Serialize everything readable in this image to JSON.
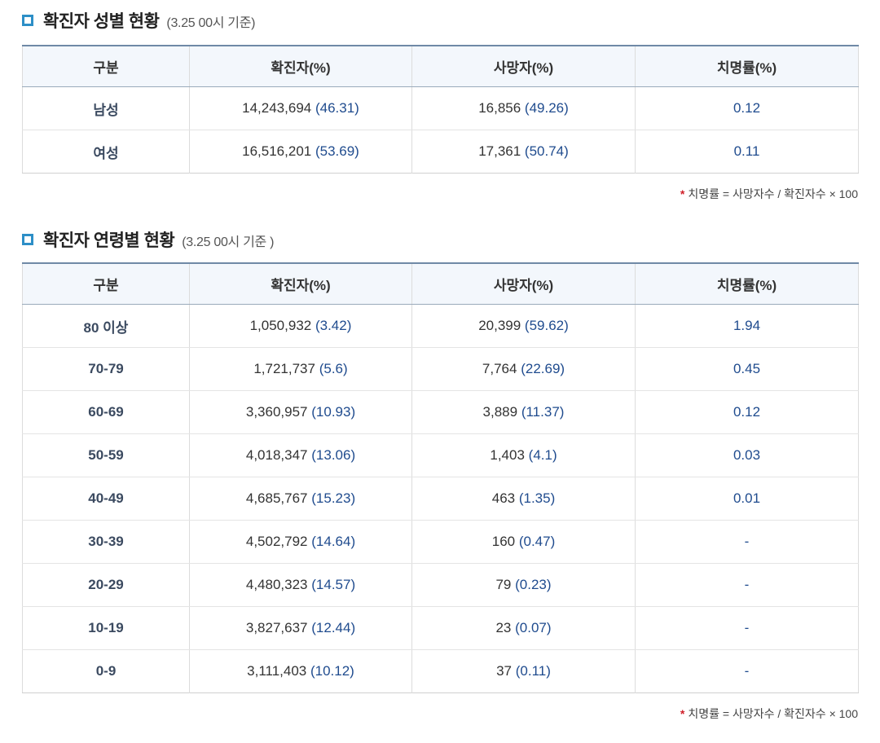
{
  "sections": [
    {
      "title": "확진자 성별 현황",
      "subtitle": "(3.25 00시 기준)",
      "headers": [
        "구분",
        "확진자(%)",
        "사망자(%)",
        "치명률(%)"
      ],
      "rows": [
        {
          "label": "남성",
          "cases": "14,243,694",
          "cases_pct": "(46.31)",
          "deaths": "16,856",
          "deaths_pct": "(49.26)",
          "rate": "0.12"
        },
        {
          "label": "여성",
          "cases": "16,516,201",
          "cases_pct": "(53.69)",
          "deaths": "17,361",
          "deaths_pct": "(50.74)",
          "rate": "0.11"
        }
      ],
      "note": "치명률 = 사망자수 / 확진자수 × 100"
    },
    {
      "title": "확진자 연령별 현황",
      "subtitle": "(3.25 00시 기준 )",
      "headers": [
        "구분",
        "확진자(%)",
        "사망자(%)",
        "치명률(%)"
      ],
      "rows": [
        {
          "label": "80 이상",
          "cases": "1,050,932",
          "cases_pct": "(3.42)",
          "deaths": "20,399",
          "deaths_pct": "(59.62)",
          "rate": "1.94"
        },
        {
          "label": "70-79",
          "cases": "1,721,737",
          "cases_pct": "(5.6)",
          "deaths": "7,764",
          "deaths_pct": "(22.69)",
          "rate": "0.45"
        },
        {
          "label": "60-69",
          "cases": "3,360,957",
          "cases_pct": "(10.93)",
          "deaths": "3,889",
          "deaths_pct": "(11.37)",
          "rate": "0.12"
        },
        {
          "label": "50-59",
          "cases": "4,018,347",
          "cases_pct": "(13.06)",
          "deaths": "1,403",
          "deaths_pct": "(4.1)",
          "rate": "0.03"
        },
        {
          "label": "40-49",
          "cases": "4,685,767",
          "cases_pct": "(15.23)",
          "deaths": "463",
          "deaths_pct": "(1.35)",
          "rate": "0.01"
        },
        {
          "label": "30-39",
          "cases": "4,502,792",
          "cases_pct": "(14.64)",
          "deaths": "160",
          "deaths_pct": "(0.47)",
          "rate": "-"
        },
        {
          "label": "20-29",
          "cases": "4,480,323",
          "cases_pct": "(14.57)",
          "deaths": "79",
          "deaths_pct": "(0.23)",
          "rate": "-"
        },
        {
          "label": "10-19",
          "cases": "3,827,637",
          "cases_pct": "(12.44)",
          "deaths": "23",
          "deaths_pct": "(0.07)",
          "rate": "-"
        },
        {
          "label": "0-9",
          "cases": "3,111,403",
          "cases_pct": "(10.12)",
          "deaths": "37",
          "deaths_pct": "(0.11)",
          "rate": "-"
        }
      ],
      "note": "치명률 = 사망자수 / 확진자수 × 100"
    }
  ],
  "note_marker": "*",
  "colors": {
    "accent": "#2d8fc7",
    "header_border": "#6f89a6",
    "value_blue": "#1f4b8e",
    "footnote_star": "#d0202a"
  }
}
